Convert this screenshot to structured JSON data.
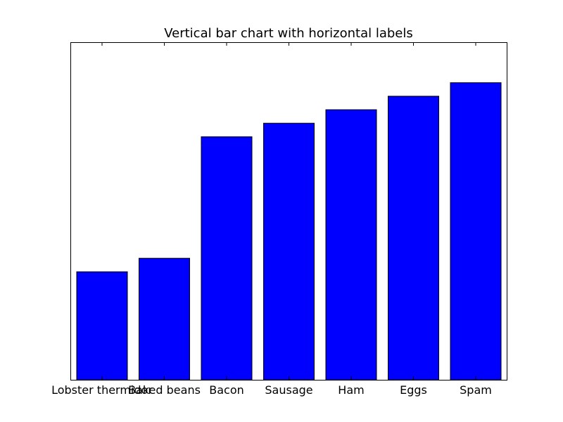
{
  "chart_data": {
    "type": "bar",
    "title": "Vertical bar chart with horizontal labels",
    "xlabel": "",
    "ylabel": "",
    "categories": [
      "Lobster thermidor",
      "Baked beans",
      "Bacon",
      "Sausage",
      "Ham",
      "Eggs",
      "Spam"
    ],
    "values": [
      4,
      4.5,
      9,
      9.5,
      10,
      10.5,
      11
    ],
    "ylim": [
      0,
      12.5
    ],
    "grid": false,
    "y_tick_labels_visible": false,
    "bar_color": "#0000ff",
    "edge_color": "#000000"
  }
}
